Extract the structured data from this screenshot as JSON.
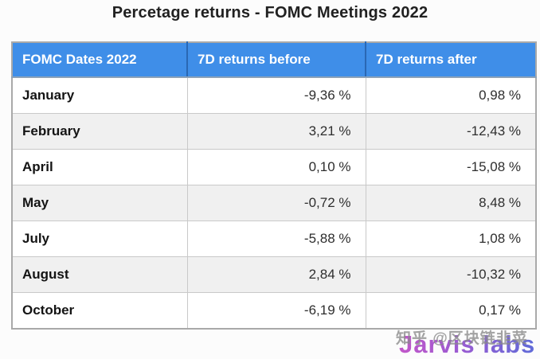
{
  "title": "Percetage returns - FOMC Meetings 2022",
  "table": {
    "columns": [
      "FOMC Dates 2022",
      "7D returns before",
      "7D returns after"
    ],
    "rows": [
      {
        "month": "January",
        "before": "-9,36 %",
        "after": "0,98 %"
      },
      {
        "month": "February",
        "before": "3,21 %",
        "after": "-12,43 %"
      },
      {
        "month": "April",
        "before": "0,10 %",
        "after": "-15,08 %"
      },
      {
        "month": "May",
        "before": "-0,72 %",
        "after": "8,48 %"
      },
      {
        "month": "July",
        "before": "-5,88 %",
        "after": "1,08 %"
      },
      {
        "month": "August",
        "before": "2,84 %",
        "after": "-10,32 %"
      },
      {
        "month": "October",
        "before": "-6,19 %",
        "after": "0,17 %"
      }
    ],
    "header_bg": "#3f8ee8",
    "header_text_color": "#ffffff",
    "alt_row_bg": "#f0f0f0",
    "border_color": "#c9c9c9"
  },
  "chart_data": {
    "type": "table",
    "title": "Percetage returns - FOMC Meetings 2022",
    "columns": [
      "FOMC Dates 2022",
      "7D returns before",
      "7D returns after"
    ],
    "rows": [
      [
        "January",
        -9.36,
        0.98
      ],
      [
        "February",
        3.21,
        -12.43
      ],
      [
        "April",
        0.1,
        -15.08
      ],
      [
        "May",
        -0.72,
        8.48
      ],
      [
        "July",
        -5.88,
        1.08
      ],
      [
        "August",
        2.84,
        -10.32
      ],
      [
        "October",
        -6.19,
        0.17
      ]
    ],
    "value_unit": "%",
    "decimal_separator": ","
  },
  "watermark": {
    "zhihu_text": "知乎 @区块链韭菜",
    "brand_text": "Jarvis labs",
    "brand_gradient": [
      "#c257c9",
      "#5f6bd8"
    ]
  }
}
